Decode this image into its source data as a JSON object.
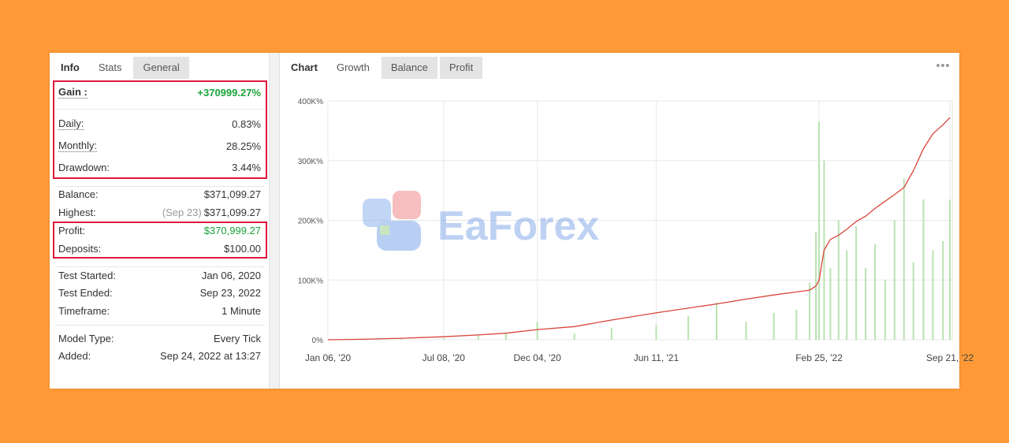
{
  "left_panel": {
    "tabs": [
      "Info",
      "Stats",
      "General"
    ],
    "groups": [
      {
        "rows": [
          {
            "label": "Gain :",
            "value": "+370999.27%"
          },
          {
            "label": "Daily:",
            "value": "0.83%"
          },
          {
            "label": "Monthly:",
            "value": "28.25%"
          },
          {
            "label": "Drawdown:",
            "value": "3.44%"
          }
        ]
      },
      {
        "rows": [
          {
            "label": "Balance:",
            "value": "$371,099.27"
          },
          {
            "label": "Highest:",
            "note": "(Sep 23)",
            "value": "$371,099.27"
          },
          {
            "label": "Profit:",
            "value": "$370,999.27"
          },
          {
            "label": "Deposits:",
            "value": "$100.00"
          }
        ]
      },
      {
        "rows": [
          {
            "label": "Test Started:",
            "value": "Jan 06, 2020"
          },
          {
            "label": "Test Ended:",
            "value": "Sep 23, 2022"
          },
          {
            "label": "Timeframe:",
            "value": "1 Minute"
          }
        ]
      },
      {
        "rows": [
          {
            "label": "Model Type:",
            "value": "Every Tick"
          },
          {
            "label": "Added:",
            "value": "Sep 24, 2022 at 13:27"
          }
        ]
      }
    ]
  },
  "right_panel": {
    "tabs": [
      "Chart",
      "Growth",
      "Balance",
      "Profit"
    ]
  },
  "watermark": "EaForex",
  "chart_data": {
    "type": "line",
    "x": [
      "2020-01-06",
      "2020-03-01",
      "2020-05-01",
      "2020-07-08",
      "2020-09-01",
      "2020-10-15",
      "2020-12-04",
      "2021-02-01",
      "2021-04-01",
      "2021-06-11",
      "2021-08-01",
      "2021-09-15",
      "2021-11-01",
      "2021-12-15",
      "2022-01-20",
      "2022-02-10",
      "2022-02-20",
      "2022-02-25",
      "2022-03-05",
      "2022-03-15",
      "2022-03-28",
      "2022-04-10",
      "2022-04-25",
      "2022-05-10",
      "2022-05-25",
      "2022-06-10",
      "2022-06-25",
      "2022-07-10",
      "2022-07-25",
      "2022-08-10",
      "2022-08-25",
      "2022-09-10",
      "2022-09-21"
    ],
    "series": [
      {
        "type": "bar",
        "color": "#b9e2b1",
        "values": [
          0,
          500,
          1500,
          3000,
          8000,
          12000,
          30000,
          10000,
          20000,
          25000,
          40000,
          62000,
          30000,
          45000,
          50000,
          95000,
          180000,
          365000,
          300000,
          120000,
          200000,
          150000,
          190000,
          120000,
          160000,
          100000,
          200000,
          270000,
          130000,
          235000,
          150000,
          165000,
          235000
        ]
      },
      {
        "type": "line",
        "color": "#d9443a",
        "values": [
          0,
          800,
          2500,
          5000,
          8000,
          11000,
          17000,
          22000,
          33000,
          45000,
          53000,
          60000,
          68000,
          75000,
          80000,
          83000,
          90000,
          100000,
          150000,
          168000,
          175000,
          185000,
          198000,
          207000,
          220000,
          232000,
          243000,
          255000,
          283000,
          320000,
          345000,
          360000,
          372000
        ]
      }
    ],
    "xlim": [
      "2020-01-06",
      "2022-09-21"
    ],
    "xticks": [
      {
        "value": "2020-01-06",
        "label": "Jan 06, '20"
      },
      {
        "value": "2020-07-08",
        "label": "Jul 08, '20"
      },
      {
        "value": "2020-12-04",
        "label": "Dec 04, '20"
      },
      {
        "value": "2021-06-11",
        "label": "Jun 11, '21"
      },
      {
        "value": "2022-02-25",
        "label": "Feb 25, '22"
      },
      {
        "value": "2022-09-21",
        "label": "Sep 21, '22"
      }
    ],
    "ylim": [
      0,
      400000
    ],
    "yticks": [
      {
        "value": 0,
        "label": "0%"
      },
      {
        "value": 100000,
        "label": "100K%"
      },
      {
        "value": 200000,
        "label": "200K%"
      },
      {
        "value": 300000,
        "label": "300K%"
      },
      {
        "value": 400000,
        "label": "400K%"
      }
    ],
    "grid": true
  }
}
